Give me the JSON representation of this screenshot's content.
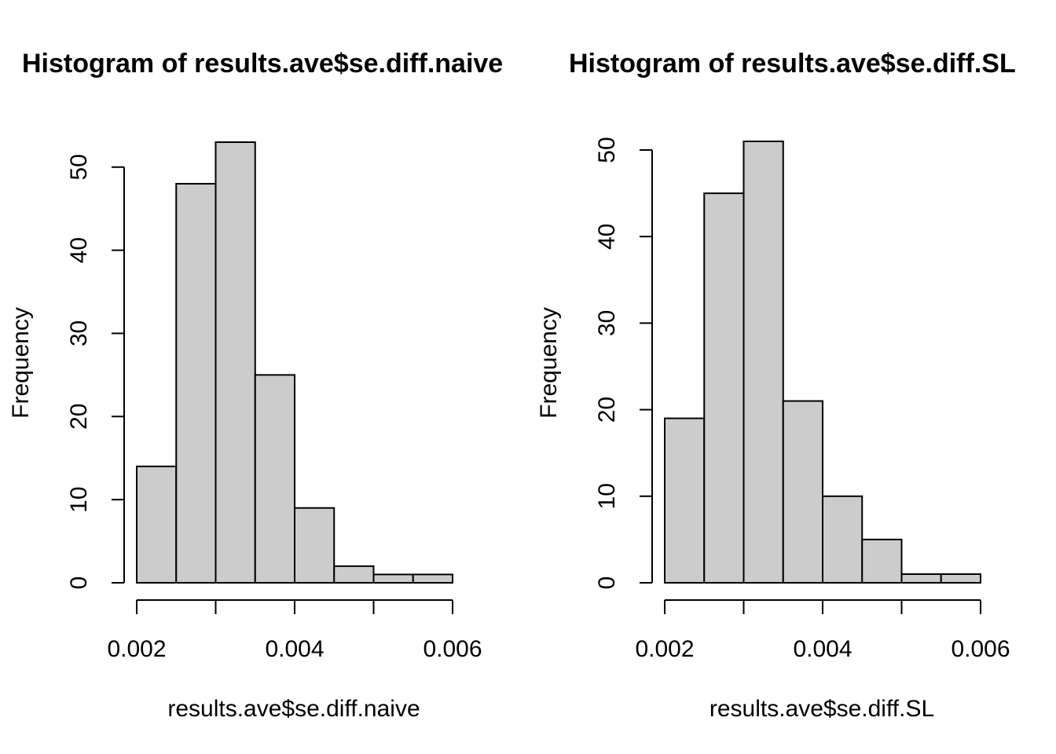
{
  "chart_data": [
    {
      "type": "bar",
      "title": "Histogram of results.ave$se.diff.naive",
      "xlabel": "results.ave$se.diff.naive",
      "ylabel": "Frequency",
      "bins": [
        [
          0.002,
          0.0025
        ],
        [
          0.0025,
          0.003
        ],
        [
          0.003,
          0.0035
        ],
        [
          0.0035,
          0.004
        ],
        [
          0.004,
          0.0045
        ],
        [
          0.0045,
          0.005
        ],
        [
          0.005,
          0.0055
        ],
        [
          0.0055,
          0.006
        ]
      ],
      "values": [
        14,
        48,
        53,
        25,
        9,
        2,
        1,
        1
      ],
      "xlim": [
        0.002,
        0.006
      ],
      "ylim": [
        0,
        53
      ],
      "xticks": [
        0.002,
        0.003,
        0.004,
        0.005,
        0.006
      ],
      "xtick_labels": [
        "0.002",
        "",
        "0.004",
        "",
        "0.006"
      ],
      "yticks": [
        0,
        10,
        20,
        30,
        40,
        50
      ],
      "ytick_labels": [
        "0",
        "10",
        "20",
        "30",
        "40",
        "50"
      ],
      "grid": false,
      "bar_color": "#cccccc"
    },
    {
      "type": "bar",
      "title": "Histogram of results.ave$se.diff.SL",
      "xlabel": "results.ave$se.diff.SL",
      "ylabel": "Frequency",
      "bins": [
        [
          0.002,
          0.0025
        ],
        [
          0.0025,
          0.003
        ],
        [
          0.003,
          0.0035
        ],
        [
          0.0035,
          0.004
        ],
        [
          0.004,
          0.0045
        ],
        [
          0.0045,
          0.005
        ],
        [
          0.005,
          0.0055
        ],
        [
          0.0055,
          0.006
        ]
      ],
      "values": [
        19,
        45,
        51,
        21,
        10,
        5,
        1,
        1
      ],
      "xlim": [
        0.002,
        0.006
      ],
      "ylim": [
        0,
        51
      ],
      "xticks": [
        0.002,
        0.003,
        0.004,
        0.005,
        0.006
      ],
      "xtick_labels": [
        "0.002",
        "",
        "0.004",
        "",
        "0.006"
      ],
      "yticks": [
        0,
        10,
        20,
        30,
        40,
        50
      ],
      "ytick_labels": [
        "0",
        "10",
        "20",
        "30",
        "40",
        "50"
      ],
      "grid": false,
      "bar_color": "#cccccc"
    }
  ]
}
